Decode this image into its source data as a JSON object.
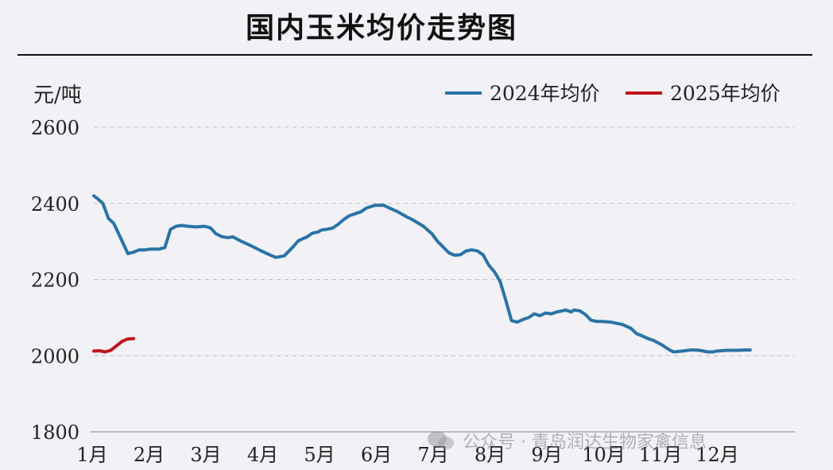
{
  "chart_data": {
    "type": "line",
    "title": "国内玉米均价走势图",
    "ylabel": "元/吨",
    "ylim": [
      1800,
      2600
    ],
    "yticks": [
      1800,
      2000,
      2200,
      2400,
      2600
    ],
    "categories": [
      "1月",
      "2月",
      "3月",
      "4月",
      "5月",
      "6月",
      "7月",
      "8月",
      "9月",
      "10月",
      "11月",
      "12月"
    ],
    "grid": true,
    "legend_position": "top-right",
    "series": [
      {
        "name": "2024年均价",
        "color": "#2a73a6",
        "x": [
          0.0,
          0.07,
          0.16,
          0.26,
          0.35,
          0.5,
          0.6,
          0.7,
          0.8,
          0.9,
          1.0,
          1.15,
          1.25,
          1.35,
          1.45,
          1.55,
          1.65,
          1.8,
          1.95,
          2.05,
          2.15,
          2.25,
          2.35,
          2.45,
          2.6,
          2.75,
          2.95,
          3.05,
          3.2,
          3.35,
          3.5,
          3.6,
          3.75,
          3.85,
          3.95,
          4.0,
          4.1,
          4.2,
          4.3,
          4.4,
          4.5,
          4.7,
          4.8,
          4.95,
          5.1,
          5.2,
          5.35,
          5.5,
          5.6,
          5.8,
          5.95,
          6.05,
          6.15,
          6.25,
          6.35,
          6.45,
          6.55,
          6.65,
          6.75,
          6.85,
          6.95,
          7.05,
          7.15,
          7.25,
          7.35,
          7.45,
          7.55,
          7.65,
          7.75,
          7.85,
          7.95,
          8.05,
          8.15,
          8.25,
          8.3,
          8.4,
          8.45,
          8.55,
          8.65,
          8.75,
          8.85,
          8.95,
          9.1,
          9.2,
          9.3,
          9.45,
          9.55,
          9.65,
          9.75,
          9.85,
          10.0,
          10.1,
          10.2,
          10.35,
          10.5,
          10.6,
          10.7,
          10.8,
          10.9,
          10.95,
          11.05,
          11.15,
          11.25,
          11.35,
          11.45,
          11.55
        ],
        "values": [
          2420,
          2412,
          2400,
          2360,
          2348,
          2300,
          2268,
          2272,
          2278,
          2278,
          2280,
          2280,
          2284,
          2332,
          2340,
          2342,
          2340,
          2338,
          2340,
          2336,
          2320,
          2313,
          2310,
          2312,
          2300,
          2290,
          2275,
          2268,
          2258,
          2262,
          2285,
          2302,
          2312,
          2322,
          2325,
          2330,
          2332,
          2335,
          2345,
          2358,
          2368,
          2378,
          2388,
          2395,
          2395,
          2388,
          2378,
          2365,
          2358,
          2340,
          2320,
          2300,
          2285,
          2270,
          2264,
          2265,
          2275,
          2278,
          2275,
          2265,
          2238,
          2220,
          2195,
          2145,
          2092,
          2088,
          2095,
          2100,
          2110,
          2105,
          2112,
          2110,
          2115,
          2118,
          2120,
          2115,
          2120,
          2118,
          2108,
          2093,
          2090,
          2090,
          2088,
          2085,
          2082,
          2072,
          2058,
          2052,
          2045,
          2040,
          2028,
          2018,
          2010,
          2012,
          2015,
          2015,
          2013,
          2010,
          2010,
          2012,
          2013,
          2014,
          2014,
          2014,
          2015,
          2015
        ],
        "x_end_label": "12月"
      },
      {
        "name": "2025年均价",
        "color": "#c0141b",
        "x": [
          0.0,
          0.1,
          0.2,
          0.3,
          0.4,
          0.5,
          0.6,
          0.7
        ],
        "values": [
          2012,
          2013,
          2010,
          2014,
          2026,
          2038,
          2044,
          2045
        ]
      }
    ]
  },
  "watermark": "公众号 · 青岛润达生物家禽信息"
}
